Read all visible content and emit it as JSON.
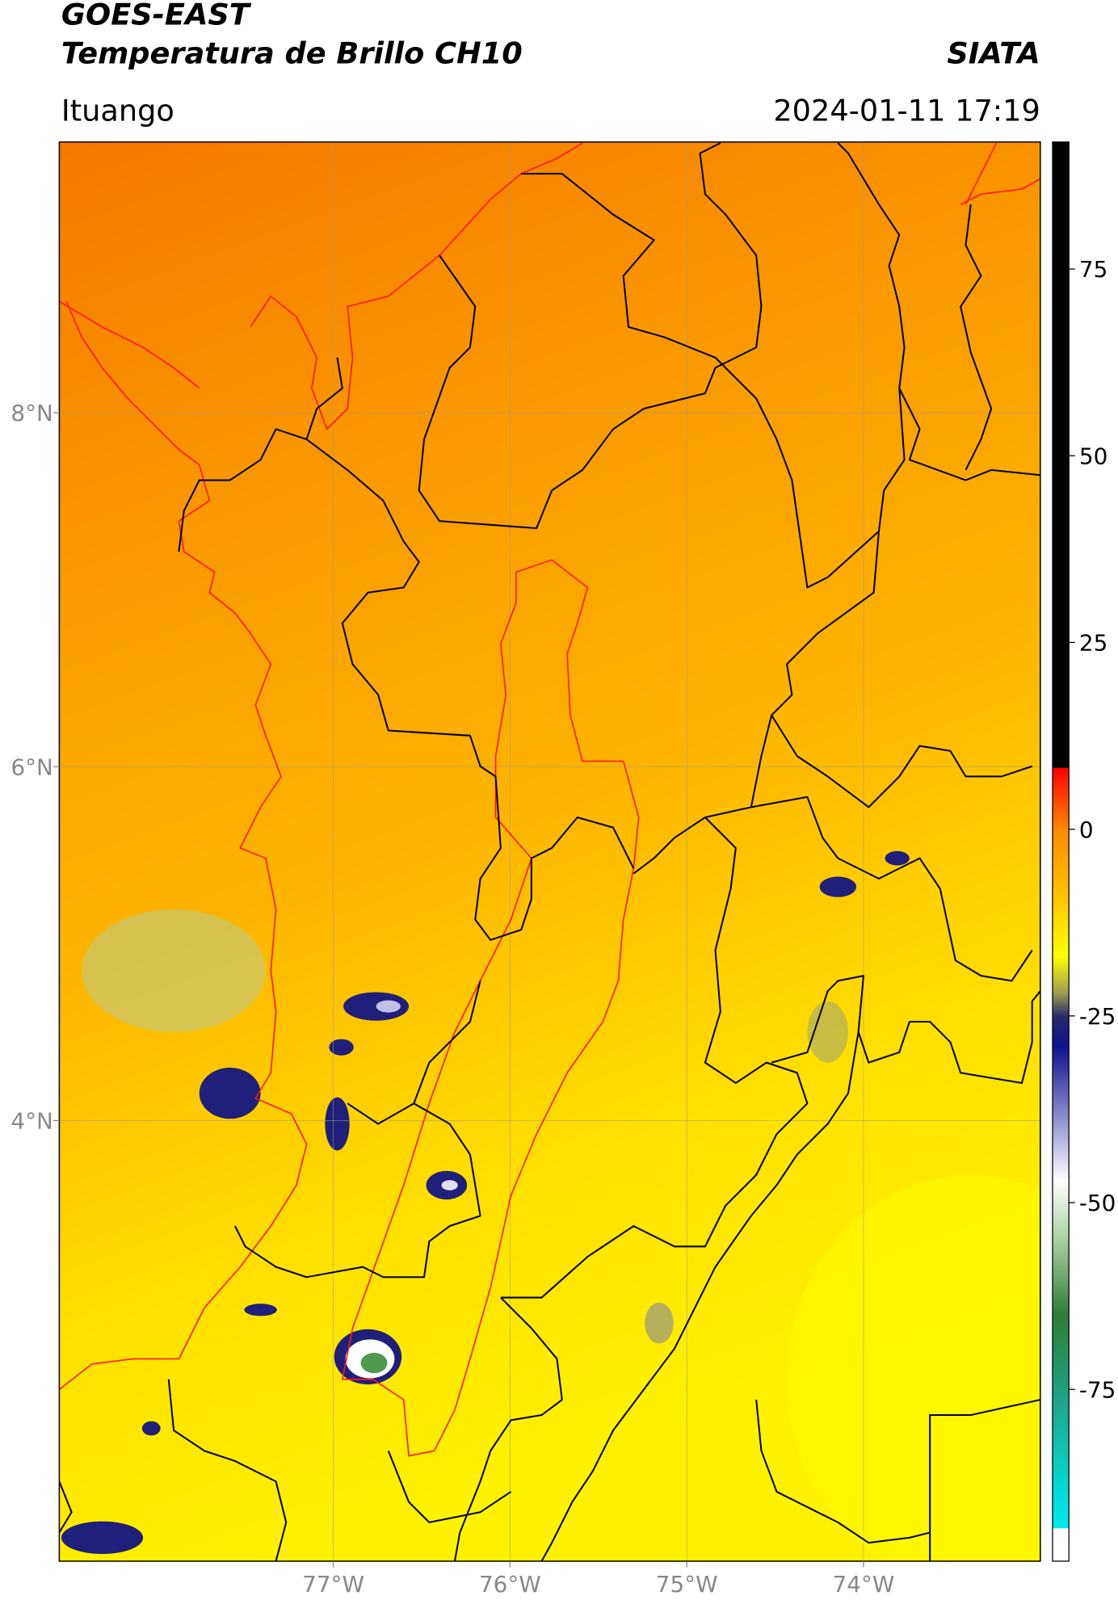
{
  "header": {
    "title": "GOES-EAST",
    "subtitle": "Temperatura de Brillo CH10",
    "organization": "SIATA",
    "location": "Ituango",
    "datetime": "2024-01-11 17:19"
  },
  "map": {
    "xlim": [
      -78.55,
      -73.0
    ],
    "ylim": [
      1.51,
      9.53
    ],
    "xticks": [
      {
        "value": -77,
        "label": "77°W"
      },
      {
        "value": -76,
        "label": "76°W"
      },
      {
        "value": -75,
        "label": "75°W"
      },
      {
        "value": -74,
        "label": "74°W"
      }
    ],
    "yticks": [
      {
        "value": 8,
        "label": "8°N"
      },
      {
        "value": 6,
        "label": "6°N"
      },
      {
        "value": 4,
        "label": "4°N"
      }
    ],
    "grid": true
  },
  "colorbar": {
    "ylim": [
      -98,
      92
    ],
    "yticks": [
      75,
      50,
      25,
      0,
      -25,
      -50,
      -75
    ],
    "stops": [
      [
        92,
        "#000000"
      ],
      [
        8.2,
        "#000000"
      ],
      [
        8.2,
        "#ff0000"
      ],
      [
        0,
        "#ff8800"
      ],
      [
        -10,
        "#ffcc00"
      ],
      [
        -17,
        "#ffff00"
      ],
      [
        -22,
        "#9a9a50"
      ],
      [
        -25,
        "#2a2a6a"
      ],
      [
        -29,
        "#101090"
      ],
      [
        -40,
        "#a0a0d8"
      ],
      [
        -47,
        "#ffffff"
      ],
      [
        -55,
        "#a8d0a0"
      ],
      [
        -65,
        "#2f7d32"
      ],
      [
        -75,
        "#20a080"
      ],
      [
        -90,
        "#00e0e0"
      ],
      [
        -93.6,
        "#00e8e8"
      ],
      [
        -93.6,
        "#ffffff"
      ],
      [
        -98,
        "#ffffff"
      ]
    ]
  }
}
